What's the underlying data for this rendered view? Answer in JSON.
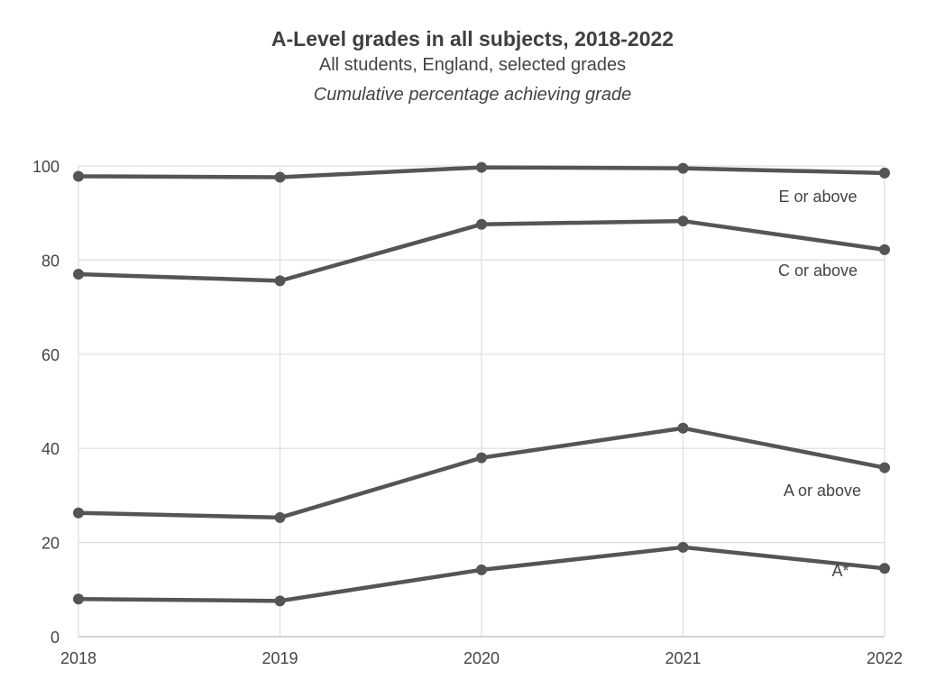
{
  "chart_data": {
    "type": "line",
    "title": "A-Level grades in all subjects, 2018-2022",
    "subtitle": "All students, England, selected grades",
    "subtitle2": "Cumulative percentage achieving grade",
    "xlabel": "",
    "ylabel": "",
    "x": [
      "2018",
      "2019",
      "2020",
      "2021",
      "2022"
    ],
    "ylim": [
      0,
      100
    ],
    "yticks": [
      "0",
      "20",
      "40",
      "60",
      "80",
      "100"
    ],
    "grid": true,
    "line_color": "#555555",
    "series": [
      {
        "name": "E or above",
        "values": [
          97.8,
          97.6,
          99.7,
          99.5,
          98.5
        ]
      },
      {
        "name": "C or above",
        "values": [
          77.0,
          75.6,
          87.6,
          88.3,
          82.2
        ]
      },
      {
        "name": "A or above",
        "values": [
          26.3,
          25.3,
          38.0,
          44.3,
          35.9
        ]
      },
      {
        "name": "A*",
        "values": [
          8.0,
          7.6,
          14.2,
          19.0,
          14.5
        ]
      }
    ]
  }
}
